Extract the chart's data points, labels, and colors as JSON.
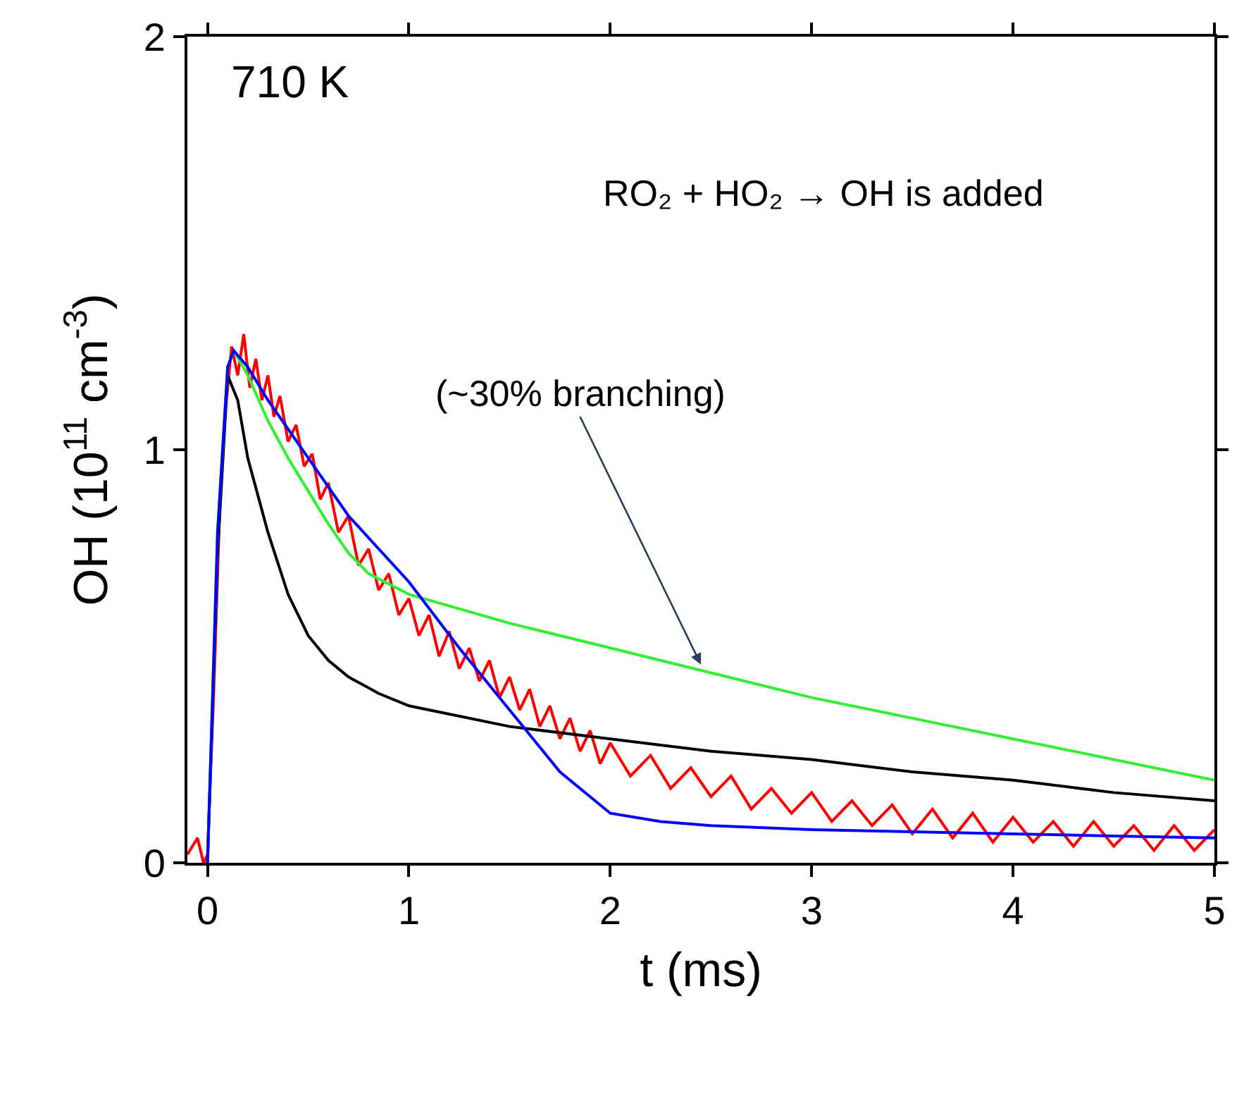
{
  "chart_data": {
    "type": "line",
    "xlabel": "t (ms)",
    "ylabel": "OH (10$^{11}$ cm$^{-3}$)",
    "xlim": [
      -0.1,
      5
    ],
    "ylim": [
      0,
      2
    ],
    "xticks": [
      0,
      1,
      2,
      3,
      4,
      5
    ],
    "yticks": [
      0,
      1,
      2
    ],
    "marker": "none",
    "line_style": "solid",
    "annotations": [
      "710 K",
      "RO₂ + HO₂ → OH is added",
      {
        "text": "(~30% branching)",
        "x": 2.45,
        "y": 0.48
      }
    ],
    "series": [
      {
        "color": "#ff0000",
        "x": [
          -0.1,
          -0.05,
          -0.02,
          0,
          0.03,
          0.06,
          0.09,
          0.12,
          0.15,
          0.18,
          0.21,
          0.24,
          0.27,
          0.3,
          0.33,
          0.36,
          0.4,
          0.44,
          0.48,
          0.52,
          0.56,
          0.6,
          0.65,
          0.7,
          0.75,
          0.8,
          0.85,
          0.9,
          0.95,
          1.0,
          1.05,
          1.1,
          1.15,
          1.2,
          1.25,
          1.3,
          1.35,
          1.4,
          1.45,
          1.5,
          1.55,
          1.6,
          1.65,
          1.7,
          1.75,
          1.8,
          1.85,
          1.9,
          1.95,
          2.0,
          2.1,
          2.2,
          2.3,
          2.4,
          2.5,
          2.6,
          2.7,
          2.8,
          2.9,
          3.0,
          3.1,
          3.2,
          3.3,
          3.4,
          3.5,
          3.6,
          3.7,
          3.8,
          3.9,
          4.0,
          4.1,
          4.2,
          4.3,
          4.4,
          4.5,
          4.6,
          4.7,
          4.8,
          4.9,
          5.0
        ],
        "values": [
          0.02,
          0.06,
          0.0,
          0.02,
          0.4,
          0.85,
          1.1,
          1.25,
          1.18,
          1.28,
          1.15,
          1.22,
          1.12,
          1.18,
          1.08,
          1.13,
          1.02,
          1.06,
          0.96,
          0.99,
          0.88,
          0.92,
          0.8,
          0.84,
          0.72,
          0.76,
          0.66,
          0.7,
          0.6,
          0.64,
          0.55,
          0.6,
          0.5,
          0.56,
          0.47,
          0.52,
          0.44,
          0.49,
          0.4,
          0.45,
          0.37,
          0.42,
          0.33,
          0.38,
          0.3,
          0.35,
          0.27,
          0.32,
          0.24,
          0.29,
          0.21,
          0.26,
          0.18,
          0.23,
          0.16,
          0.21,
          0.13,
          0.18,
          0.12,
          0.17,
          0.1,
          0.15,
          0.09,
          0.14,
          0.07,
          0.13,
          0.06,
          0.12,
          0.05,
          0.11,
          0.05,
          0.1,
          0.04,
          0.1,
          0.04,
          0.09,
          0.03,
          0.09,
          0.03,
          0.08
        ]
      },
      {
        "color": "#000000",
        "x": [
          0,
          0.05,
          0.1,
          0.15,
          0.2,
          0.3,
          0.4,
          0.5,
          0.6,
          0.7,
          0.85,
          1.0,
          1.5,
          2.0,
          2.5,
          3.0,
          3.5,
          4.0,
          4.5,
          5.0
        ],
        "values": [
          0,
          0.75,
          1.18,
          1.12,
          0.98,
          0.8,
          0.65,
          0.55,
          0.49,
          0.45,
          0.41,
          0.38,
          0.33,
          0.3,
          0.27,
          0.25,
          0.22,
          0.2,
          0.17,
          0.15
        ]
      },
      {
        "color": "#33ee33",
        "x": [
          0,
          0.05,
          0.1,
          0.13,
          0.2,
          0.3,
          0.4,
          0.5,
          0.6,
          0.7,
          0.8,
          1.0,
          1.5,
          2.0,
          2.5,
          3.0,
          3.5,
          4.0,
          4.5,
          5.0
        ],
        "values": [
          0,
          0.8,
          1.2,
          1.24,
          1.18,
          1.07,
          0.98,
          0.9,
          0.82,
          0.75,
          0.7,
          0.65,
          0.58,
          0.52,
          0.46,
          0.4,
          0.35,
          0.3,
          0.25,
          0.2
        ]
      },
      {
        "color": "#0000ff",
        "x": [
          0,
          0.05,
          0.1,
          0.13,
          0.2,
          0.3,
          0.4,
          0.5,
          0.7,
          1.0,
          1.25,
          1.5,
          1.75,
          2.0,
          2.25,
          2.5,
          3.0,
          3.5,
          4.0,
          4.5,
          5.0
        ],
        "values": [
          0,
          0.8,
          1.2,
          1.24,
          1.2,
          1.12,
          1.05,
          0.98,
          0.84,
          0.68,
          0.52,
          0.37,
          0.22,
          0.12,
          0.1,
          0.09,
          0.08,
          0.075,
          0.07,
          0.065,
          0.06
        ]
      }
    ]
  }
}
